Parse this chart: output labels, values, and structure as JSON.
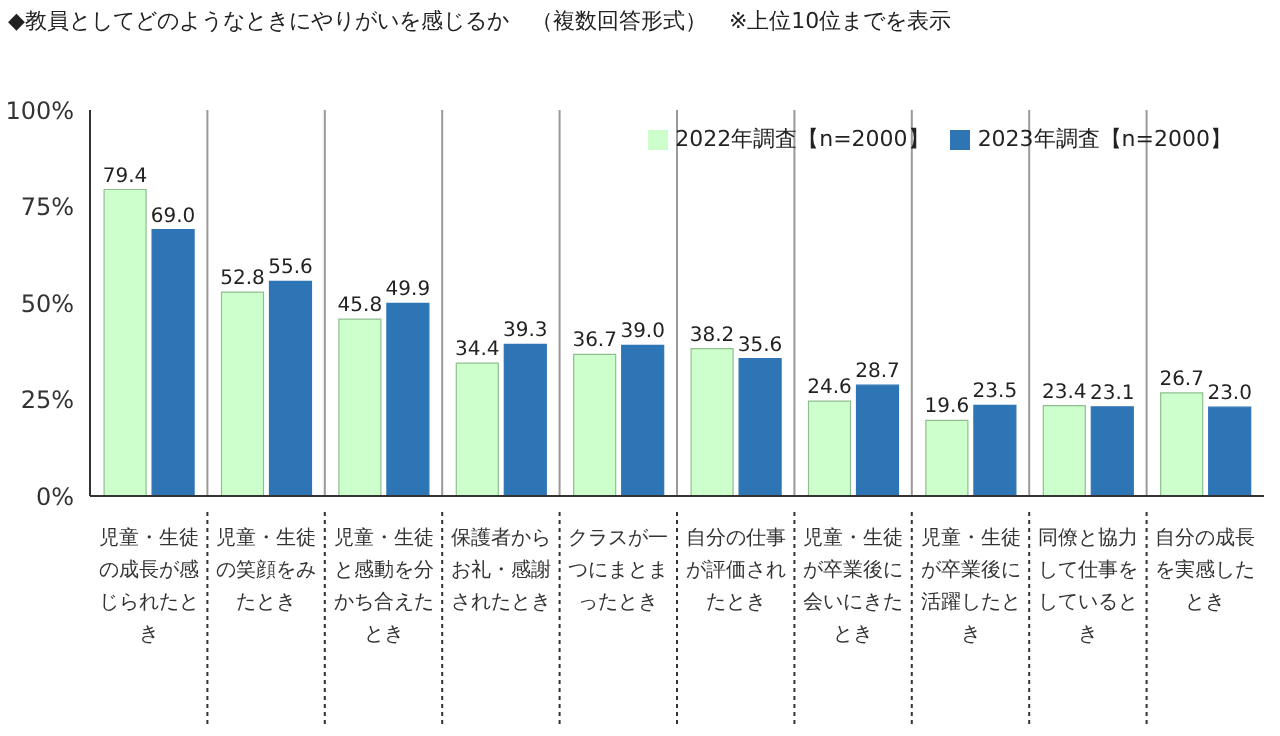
{
  "chart_data": {
    "type": "bar",
    "title": "◆教員としてどのようなときにやりがいを感じるか　（複数回答形式）　※上位10位までを表示",
    "categories": [
      "児童・生徒の成長が感じられたとき",
      "児童・生徒の笑顔をみたとき",
      "児童・生徒と感動を分かち合えたとき",
      "保護者からお礼・感謝されたとき",
      "クラスが一つにまとまったとき",
      "自分の仕事が評価されたとき",
      "児童・生徒が卒業後に会いにきたとき",
      "児童・生徒が卒業後に活躍したとき",
      "同僚と協力して仕事をしているとき",
      "自分の成長を実感したとき"
    ],
    "series": [
      {
        "name": "2022年調査【n=2000】",
        "color": "#ccffcc",
        "values": [
          79.4,
          52.8,
          45.8,
          34.4,
          36.7,
          38.2,
          24.6,
          19.6,
          23.4,
          26.7
        ],
        "value_labels": [
          "79.4",
          "52.8",
          "45.8",
          "34.4",
          "36.7",
          "38.2",
          "24.6",
          "19.6",
          "23.4",
          "26.7"
        ]
      },
      {
        "name": "2023年調査【n=2000】",
        "color": "#2e75b6",
        "values": [
          69.0,
          55.6,
          49.9,
          39.3,
          39.0,
          35.6,
          28.7,
          23.5,
          23.1,
          23.0
        ],
        "value_labels": [
          "69.0",
          "55.6",
          "49.9",
          "39.3",
          "39.0",
          "35.6",
          "28.7",
          "23.5",
          "23.1",
          "23.0"
        ]
      }
    ],
    "ylim": [
      0,
      100
    ],
    "yticks": [
      {
        "value": 0,
        "label": "0%"
      },
      {
        "value": 25,
        "label": "25%"
      },
      {
        "value": 50,
        "label": "50%"
      },
      {
        "value": 75,
        "label": "75%"
      },
      {
        "value": 100,
        "label": "100%"
      }
    ],
    "grid": "x",
    "legend": "top right"
  }
}
